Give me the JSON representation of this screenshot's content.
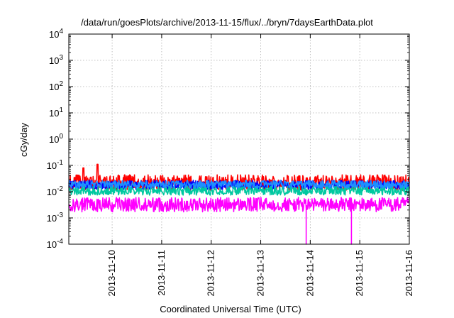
{
  "chart_data": {
    "type": "line",
    "title": "/data/run/goesPlots/archive/2013-11-15/flux/../bryn/7daysEarthData.plot",
    "xlabel": "Coordinated Universal Time (UTC)",
    "ylabel": "cGy/day",
    "y_scale": "log",
    "ylim": [
      0.0001,
      10000
    ],
    "xlim": [
      "2013-11-09 03:00",
      "2013-11-16 00:00"
    ],
    "x_tick_labels": [
      "2013-11-10",
      "2013-11-11",
      "2013-11-12",
      "2013-11-13",
      "2013-11-14",
      "2013-11-15",
      "2013-11-16"
    ],
    "y_tick_labels": [
      {
        "base": "10",
        "exp": "4"
      },
      {
        "base": "10",
        "exp": "3"
      },
      {
        "base": "10",
        "exp": "2"
      },
      {
        "base": "10",
        "exp": "1"
      },
      {
        "base": "10",
        "exp": "0"
      },
      {
        "base": "10",
        "exp": "-1"
      },
      {
        "base": "10",
        "exp": "-2"
      },
      {
        "base": "10",
        "exp": "-3"
      },
      {
        "base": "10",
        "exp": "-4"
      }
    ],
    "grid": true,
    "legend": "none",
    "series": [
      {
        "color": "#ff0000",
        "level": 0.022,
        "spread": 0.6,
        "peaks": [
          {
            "x": "2013-11-09 17:00",
            "y": 0.11
          },
          {
            "x": "2013-11-09 10:00",
            "y": 0.08
          }
        ]
      },
      {
        "color": "#0000ff",
        "level": 0.018,
        "spread": 0.35
      },
      {
        "color": "#00c8a0",
        "level": 0.011,
        "spread": 0.35
      },
      {
        "color": "#1e90ff",
        "level": 0.019,
        "spread": 0.3
      },
      {
        "color": "#ff00ff",
        "level": 0.0032,
        "spread": 0.55,
        "dips": [
          {
            "x": "2013-11-13 22:00",
            "y": 0.0001
          },
          {
            "x": "2013-11-14 20:00",
            "y": 0.0001
          }
        ]
      }
    ]
  }
}
